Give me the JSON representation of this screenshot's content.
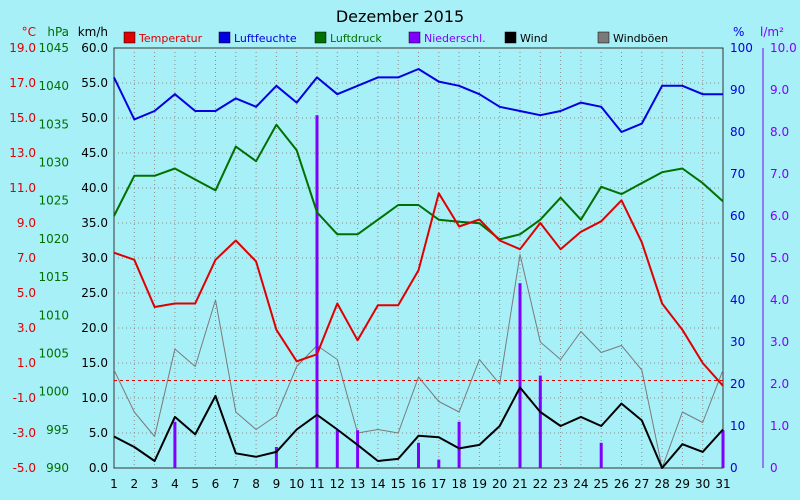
{
  "chart_data": {
    "type": "line",
    "title": "Dezember 2015",
    "x": [
      "1",
      "2",
      "3",
      "4",
      "5",
      "6",
      "7",
      "8",
      "9",
      "10",
      "11",
      "12",
      "13",
      "14",
      "15",
      "16",
      "17",
      "18",
      "19",
      "20",
      "21",
      "22",
      "23",
      "24",
      "25",
      "26",
      "27",
      "28",
      "29",
      "30",
      "31"
    ],
    "axes": {
      "temp": {
        "label": "°C",
        "ylim": [
          -5.0,
          19.0
        ],
        "ticks": [
          "19.0",
          "17.0",
          "15.0",
          "13.0",
          "11.0",
          "9.0",
          "7.0",
          "5.0",
          "3.0",
          "1.0",
          "-1.0",
          "-3.0",
          "-5.0"
        ],
        "color": "#e00000"
      },
      "pressure": {
        "label": "hPa",
        "ylim": [
          990,
          1047.5
        ],
        "ticks": [
          "1045",
          "1040",
          "1035",
          "1030",
          "1025",
          "1020",
          "1015",
          "1010",
          "1005",
          "1000",
          "995",
          "990"
        ],
        "color": "#007000"
      },
      "wind": {
        "label": "km/h",
        "ylim": [
          0,
          60
        ],
        "ticks": [
          "60.0",
          "55.0",
          "50.0",
          "45.0",
          "40.0",
          "35.0",
          "30.0",
          "25.0",
          "20.0",
          "15.0",
          "10.0",
          "5.0",
          "0.0"
        ],
        "color": "#000000"
      },
      "humidity": {
        "label": "%",
        "ylim": [
          0,
          100
        ],
        "ticks": [
          "100",
          "90",
          "80",
          "70",
          "60",
          "50",
          "40",
          "30",
          "20",
          "10",
          "0"
        ],
        "color": "#0000e0"
      },
      "precip": {
        "label": "l/m²",
        "ylim": [
          0,
          10
        ],
        "ticks": [
          "10.0",
          "9.0",
          "8.0",
          "7.0",
          "6.0",
          "5.0",
          "4.0",
          "3.0",
          "2.0",
          "1.0",
          "0"
        ],
        "color": "#8000ff"
      }
    },
    "series": [
      {
        "name": "Temperatur",
        "axis": "temp",
        "color": "#e00000",
        "values": [
          7.3,
          6.9,
          4.2,
          4.4,
          4.4,
          6.9,
          8.0,
          6.8,
          2.9,
          1.1,
          1.5,
          4.4,
          2.3,
          4.3,
          4.3,
          6.3,
          10.7,
          8.8,
          9.2,
          8.0,
          7.5,
          9.0,
          7.5,
          8.5,
          9.1,
          10.3,
          7.9,
          4.4,
          2.9,
          1.0,
          -0.3
        ]
      },
      {
        "name": "Luftfeuchte",
        "axis": "humidity",
        "color": "#0000e0",
        "values": [
          93,
          83,
          85,
          89,
          85,
          85,
          88,
          86,
          91,
          87,
          93,
          89,
          91,
          93,
          93,
          95,
          92,
          91,
          89,
          86,
          85,
          84,
          85,
          87,
          86,
          80,
          82,
          91,
          91,
          89,
          89
        ]
      },
      {
        "name": "Luftdruck",
        "axis": "pressure",
        "color": "#007000",
        "values": [
          1024.5,
          1030.0,
          1030.0,
          1031.0,
          1029.5,
          1028.0,
          1034.0,
          1032.0,
          1037.0,
          1033.5,
          1025.0,
          1022.0,
          1022.0,
          1024.0,
          1026.0,
          1026.0,
          1024.0,
          1023.7,
          1023.5,
          1021.3,
          1022.0,
          1024.0,
          1027.0,
          1024.0,
          1028.5,
          1027.5,
          1029.0,
          1030.5,
          1031.0,
          1029.0,
          1026.5
        ]
      },
      {
        "name": "Niederschl.",
        "axis": "precip",
        "color": "#8000ff",
        "type": "bar",
        "values": [
          0,
          0,
          0,
          1.1,
          0,
          0,
          0,
          0,
          0.5,
          0,
          8.4,
          0.9,
          0.9,
          0,
          0,
          0.6,
          0.2,
          1.1,
          0,
          0,
          4.4,
          2.2,
          0,
          0,
          0.6,
          0,
          0,
          0,
          0,
          0,
          0.9
        ]
      },
      {
        "name": "Wind",
        "axis": "wind",
        "color": "#000000",
        "values": [
          4.5,
          3.0,
          1.0,
          7.3,
          4.8,
          10.3,
          2.1,
          1.6,
          2.3,
          5.5,
          7.6,
          5.5,
          3.3,
          1.0,
          1.3,
          4.6,
          4.4,
          2.8,
          3.3,
          6.0,
          11.5,
          8.0,
          6.0,
          7.3,
          6.0,
          9.2,
          6.8,
          0.0,
          3.4,
          2.3,
          5.5
        ]
      },
      {
        "name": "Windböen",
        "axis": "wind",
        "color": "#7a7a7a",
        "values": [
          14.0,
          8.0,
          4.5,
          17.0,
          14.5,
          24.0,
          8.0,
          5.5,
          7.5,
          14.5,
          17.5,
          15.5,
          5.0,
          5.5,
          5.0,
          13.0,
          9.5,
          8.0,
          15.5,
          12.0,
          30.5,
          18.0,
          15.5,
          19.5,
          16.5,
          17.5,
          14.0,
          0.0,
          8.0,
          6.5,
          14.0
        ]
      }
    ],
    "grid": true,
    "reference_line": {
      "axis": "temp",
      "value": 0.0,
      "color": "#e00000"
    },
    "legend": "top"
  }
}
